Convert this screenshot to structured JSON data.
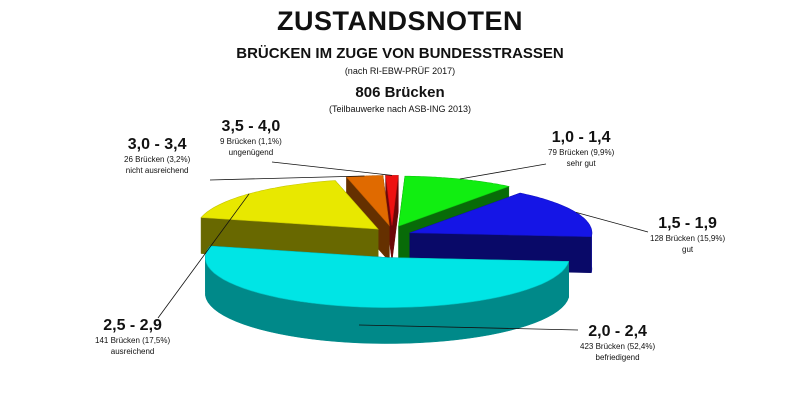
{
  "header": {
    "title": "ZUSTANDSNOTEN",
    "subtitle": "BRÜCKEN IM ZUGE VON BUNDESSTRASSEN",
    "note1": "(nach RI-EBW-PRÜF 2017)",
    "count": "806 Brücken",
    "note2": "(Teilbauwerke nach ASB-ING 2013)"
  },
  "chart_data": {
    "type": "pie",
    "style": "3d-exploded",
    "total": 806,
    "slices": [
      {
        "range": "1,0 - 1,4",
        "count_text": "79 Brücken (9,9%)",
        "desc": "sehr gut",
        "value": 79,
        "percent": 9.9,
        "color": "#11ee11"
      },
      {
        "range": "1,5 - 1,9",
        "count_text": "128 Brücken (15,9%)",
        "desc": "gut",
        "value": 128,
        "percent": 15.9,
        "color": "#1515e6"
      },
      {
        "range": "2,0 - 2,4",
        "count_text": "423 Brücken (52,4%)",
        "desc": "befriedigend",
        "value": 423,
        "percent": 52.4,
        "color": "#00e5e5"
      },
      {
        "range": "2,5 - 2,9",
        "count_text": "141 Brücken (17,5%)",
        "desc": "ausreichend",
        "value": 141,
        "percent": 17.5,
        "color": "#e8e800"
      },
      {
        "range": "3,0 - 3,4",
        "count_text": "26 Brücken (3,2%)",
        "desc": "nicht ausreichend",
        "value": 26,
        "percent": 3.2,
        "color": "#e06a00"
      },
      {
        "range": "3,5 - 4,0",
        "count_text": "9 Brücken (1,1%)",
        "desc": "ungenügend",
        "value": 9,
        "percent": 1.1,
        "color": "#ee1111"
      }
    ]
  }
}
